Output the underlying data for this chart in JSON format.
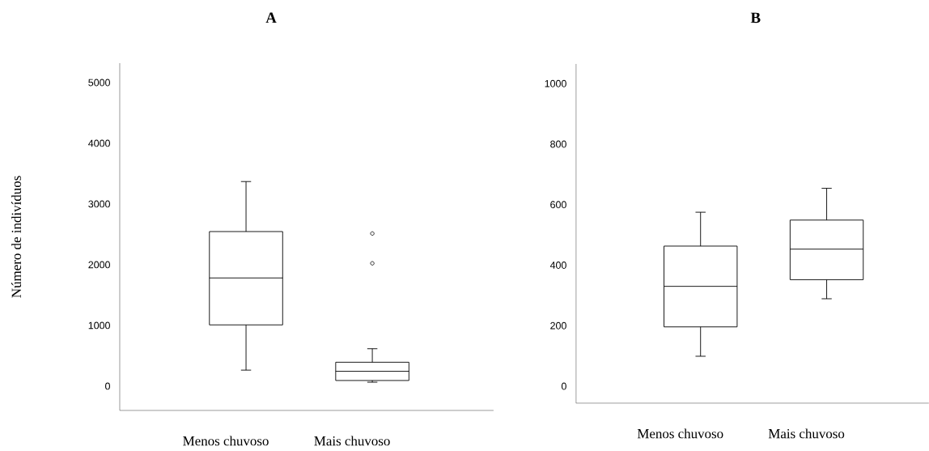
{
  "chart_data": [
    {
      "type": "box",
      "title": "A",
      "ylabel": "Número de indivíduos",
      "categories": [
        "Menos chuvoso",
        "Mais chuvoso"
      ],
      "color": "#000000",
      "boxes": [
        {
          "low": 264,
          "q1": 1009,
          "median": 1782,
          "q3": 2546,
          "high": 3370
        },
        {
          "low": 65,
          "q1": 93,
          "median": 245,
          "q3": 394,
          "high": 616,
          "outliers": [
            2514,
            2023
          ]
        }
      ],
      "ylim": [
        -400,
        5320
      ],
      "yticks": [
        0,
        1000,
        2000,
        3000,
        4000,
        5000
      ]
    },
    {
      "type": "box",
      "title": "B",
      "categories": [
        "Menos chuvoso",
        "Mais chuvoso"
      ],
      "color": "#000000",
      "boxes": [
        {
          "low": 99,
          "q1": 196,
          "median": 330,
          "q3": 463,
          "high": 575
        },
        {
          "low": 289,
          "q1": 352,
          "median": 453,
          "q3": 549,
          "high": 654
        }
      ],
      "ylim": [
        -56,
        1065
      ],
      "yticks": [
        0,
        200,
        400,
        600,
        800,
        1000
      ]
    }
  ]
}
